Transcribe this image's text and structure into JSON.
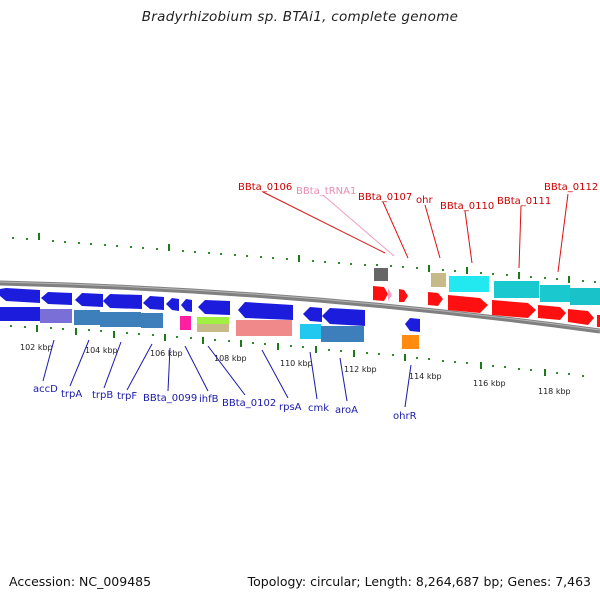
{
  "title": "Bradyrhizobium sp. BTAi1, complete genome",
  "footer": {
    "accession": "Accession: NC_009485",
    "summary": "Topology: circular; Length: 8,264,687 bp; Genes: 7,463"
  },
  "colors": {
    "backbone": "#808080",
    "tick": "#1a7a1a",
    "dot": "#2e8b2e",
    "blue_label": "#1a1aaa",
    "red_label": "#cc0000",
    "pink_label": "#e58fb0",
    "forward_gene": "#ff0000",
    "reverse_gene": "#1c1cdd"
  },
  "ruler_ticks": [
    "102 kbp",
    "104 kbp",
    "106 kbp",
    "108 kbp",
    "110 kbp",
    "112 kbp",
    "114 kbp",
    "116 kbp",
    "118 kbp"
  ],
  "labels_top": [
    "BBta_0106",
    "BBta_tRNA1",
    "BBta_0107",
    "ohr",
    "BBta_0110",
    "BBta_0111",
    "BBta_0112"
  ],
  "labels_bottom": [
    "accD",
    "trpA",
    "trpB",
    "trpF",
    "BBta_0099",
    "ihfB",
    "BBta_0102",
    "rpsA",
    "cmk",
    "aroA",
    "ohrR"
  ]
}
